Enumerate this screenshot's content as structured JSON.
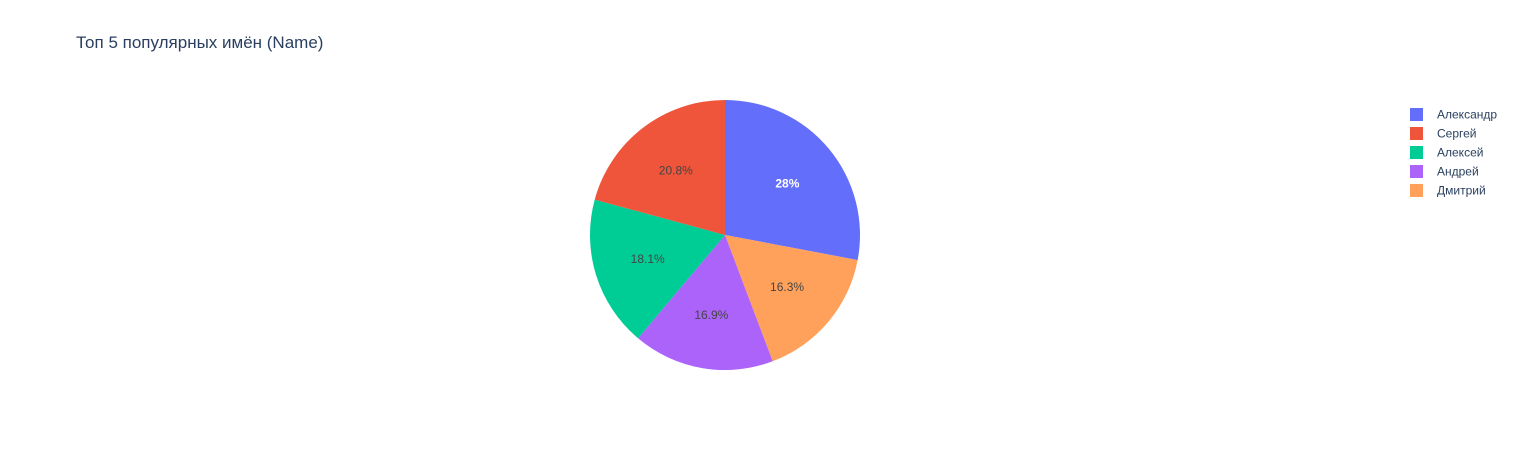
{
  "chart_data": {
    "type": "pie",
    "title": "Топ 5 популярных имён (Name)",
    "categories": [
      "Александр",
      "Сергей",
      "Алексей",
      "Андрей",
      "Дмитрий"
    ],
    "values": [
      28.0,
      20.8,
      18.1,
      16.9,
      16.3
    ],
    "slice_labels": [
      "28%",
      "20.8%",
      "18.1%",
      "16.9%",
      "16.3%"
    ],
    "pie_order": [
      "Александр",
      "Дмитрий",
      "Андрей",
      "Алексей",
      "Сергей"
    ],
    "legend_order": [
      "Александр",
      "Сергей",
      "Алексей",
      "Андрей",
      "Дмитрий"
    ],
    "colors": {
      "Александр": "#636efa",
      "Сергей": "#ef553b",
      "Алексей": "#00cc96",
      "Андрей": "#ab63fa",
      "Дмитрий": "#ffa15a"
    },
    "label_colors": {
      "Александр": "#ffffff",
      "Сергей": "#444444",
      "Алексей": "#444444",
      "Андрей": "#444444",
      "Дмитрий": "#444444"
    },
    "legend_placement": "top-right",
    "start_angle_deg": 0,
    "direction": "clockwise"
  }
}
